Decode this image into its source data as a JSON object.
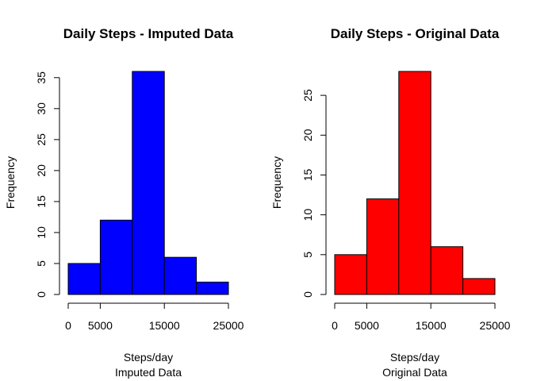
{
  "chart_data": [
    {
      "type": "bar",
      "title": "Daily Steps - Imputed Data",
      "xlabel": "Steps/day",
      "xsublabel": "Imputed Data",
      "ylabel": "Frequency",
      "color": "#0000ff",
      "bins": [
        [
          0,
          5000
        ],
        [
          5000,
          10000
        ],
        [
          10000,
          15000
        ],
        [
          15000,
          20000
        ],
        [
          20000,
          25000
        ]
      ],
      "values": [
        5,
        12,
        36,
        6,
        2
      ],
      "xlim": [
        0,
        25000
      ],
      "ylim": [
        0,
        36
      ],
      "xticks": [
        0,
        5000,
        15000,
        25000
      ],
      "xtick_labels": [
        "0",
        "5000",
        "15000",
        "25000"
      ],
      "yticks": [
        0,
        5,
        10,
        15,
        20,
        25,
        30,
        35
      ],
      "ytick_labels": [
        "0",
        "5",
        "10",
        "15",
        "20",
        "25",
        "30",
        "35"
      ],
      "grid": false
    },
    {
      "type": "bar",
      "title": "Daily Steps - Original Data",
      "xlabel": "Steps/day",
      "xsublabel": "Original Data",
      "ylabel": "Frequency",
      "color": "#ff0000",
      "bins": [
        [
          0,
          5000
        ],
        [
          5000,
          10000
        ],
        [
          10000,
          15000
        ],
        [
          15000,
          20000
        ],
        [
          20000,
          25000
        ]
      ],
      "values": [
        5,
        12,
        28,
        6,
        2
      ],
      "xlim": [
        0,
        25000
      ],
      "ylim": [
        0,
        28
      ],
      "xticks": [
        0,
        5000,
        15000,
        25000
      ],
      "xtick_labels": [
        "0",
        "5000",
        "15000",
        "25000"
      ],
      "yticks": [
        0,
        5,
        10,
        15,
        20,
        25
      ],
      "ytick_labels": [
        "0",
        "5",
        "10",
        "15",
        "20",
        "25"
      ],
      "grid": false
    }
  ]
}
